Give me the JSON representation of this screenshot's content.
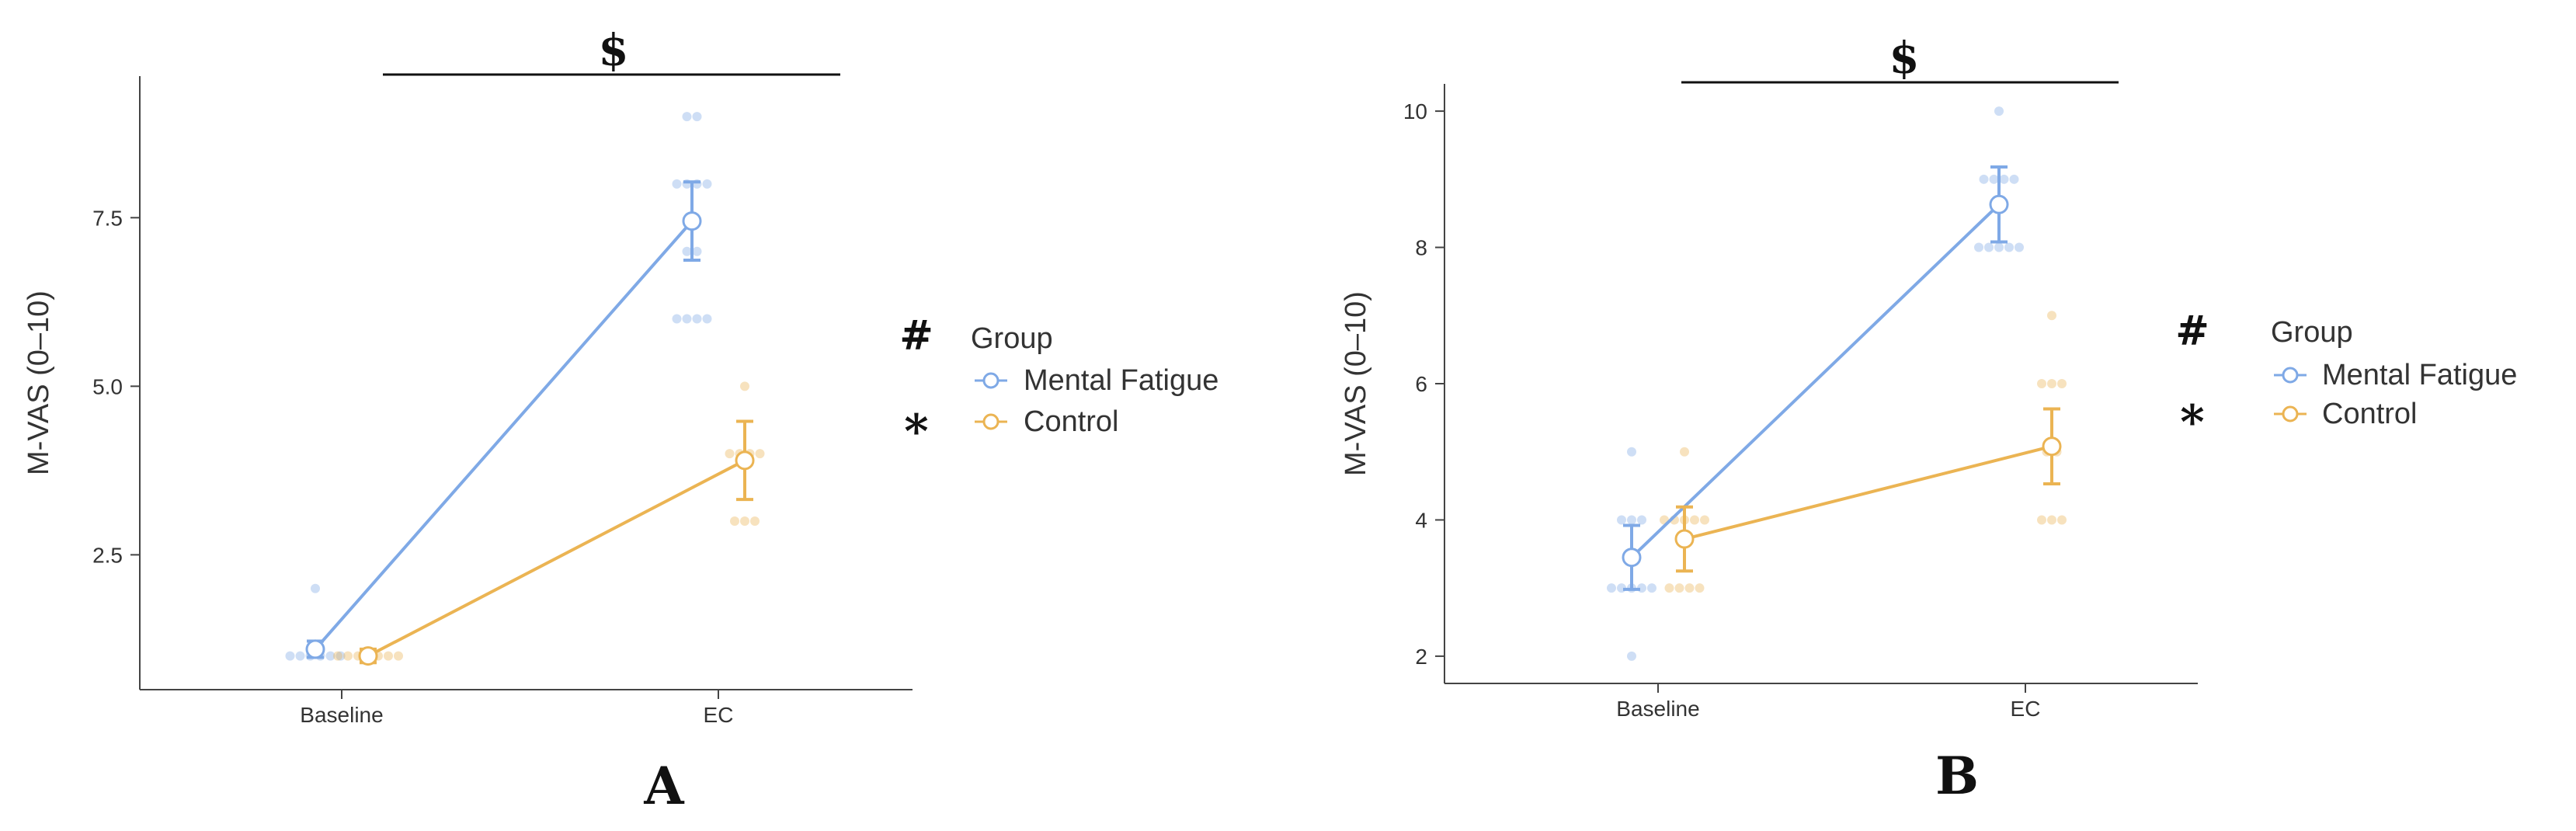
{
  "colors": {
    "mental_fatigue": "#7fa9e6",
    "control": "#ebb453",
    "axis": "#333333"
  },
  "legend": {
    "title": "Group",
    "items": [
      "Mental Fatigue",
      "Control"
    ]
  },
  "chart_data": [
    {
      "panel": "A",
      "type": "line",
      "ylabel": "M-VAS (0–10)",
      "xlabel": "",
      "categories": [
        "Baseline",
        "EC"
      ],
      "ylim": [
        0.5,
        9.6
      ],
      "yticks": [
        2.5,
        5.0,
        7.5
      ],
      "ytick_labels": [
        "2.5",
        "5.0",
        "7.5"
      ],
      "significance": {
        "bar_label": "$",
        "group_marker": "#",
        "interaction_marker": "*"
      },
      "series": [
        {
          "name": "Mental Fatigue",
          "values": [
            1.1,
            7.45
          ],
          "error": [
            0.12,
            0.58
          ],
          "points": [
            [
              1,
              1,
              1,
              1,
              1,
              1,
              2
            ],
            [
              6,
              6,
              6,
              6,
              7,
              7,
              8,
              8,
              8,
              8,
              9,
              9
            ]
          ]
        },
        {
          "name": "Control",
          "values": [
            1.0,
            3.9
          ],
          "error": [
            0.1,
            0.58
          ],
          "points": [
            [
              1,
              1,
              1,
              1,
              1,
              1,
              1
            ],
            [
              3,
              3,
              3,
              4,
              4,
              4,
              4,
              5
            ]
          ]
        }
      ]
    },
    {
      "panel": "B",
      "type": "line",
      "ylabel": "M-VAS (0–10)",
      "xlabel": "",
      "categories": [
        "Baseline",
        "EC"
      ],
      "ylim": [
        1.6,
        10.4
      ],
      "yticks": [
        2,
        4,
        6,
        8,
        10
      ],
      "ytick_labels": [
        "2",
        "4",
        "6",
        "8",
        "10"
      ],
      "significance": {
        "bar_label": "$",
        "group_marker": "#",
        "interaction_marker": "*"
      },
      "series": [
        {
          "name": "Mental Fatigue",
          "values": [
            3.45,
            8.63
          ],
          "error": [
            0.47,
            0.55
          ],
          "points": [
            [
              2,
              3,
              3,
              3,
              3,
              3,
              4,
              4,
              4,
              5
            ],
            [
              8,
              8,
              8,
              8,
              8,
              9,
              9,
              9,
              9,
              10
            ]
          ]
        },
        {
          "name": "Control",
          "values": [
            3.72,
            5.08
          ],
          "error": [
            0.47,
            0.55
          ],
          "points": [
            [
              3,
              3,
              3,
              3,
              4,
              4,
              4,
              4,
              4,
              5
            ],
            [
              4,
              4,
              4,
              5,
              5,
              6,
              6,
              6,
              7
            ]
          ]
        }
      ]
    }
  ]
}
